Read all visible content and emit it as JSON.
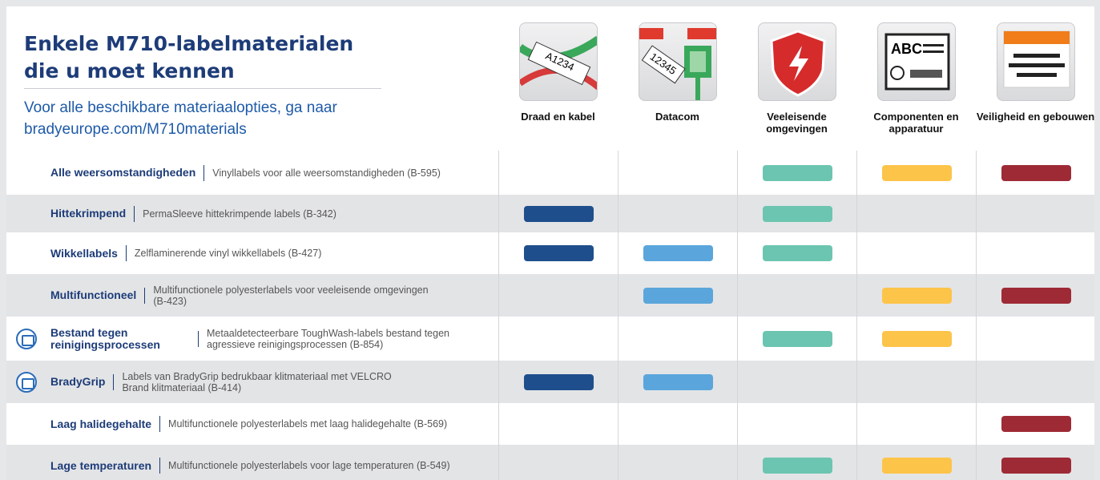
{
  "header": {
    "title": "Enkele M710-labelmaterialen die u moet kennen",
    "subtitle": "Voor alle beschikbare materiaalopties, ga naar bradyeurope.com/M710materials"
  },
  "table": {
    "columns": [
      {
        "label": "Draad en kabel",
        "color": "#1f4e8c"
      },
      {
        "label": "Datacom",
        "color": "#5aa6dc"
      },
      {
        "label": "Veeleisende omgevingen",
        "color": "#6cc5b0"
      },
      {
        "label": "Componenten en apparatuur",
        "color": "#fdc44a"
      },
      {
        "label": "Veiligheid en gebouwen",
        "color": "#9e2a36"
      }
    ],
    "rows": [
      {
        "name": "Alle weersomstandigheden",
        "description": "Vinyllabels voor alle weersomstandigheden (B-595)",
        "icon": false,
        "marks": [
          false,
          false,
          true,
          true,
          true
        ]
      },
      {
        "name": "Hittekrimpend",
        "description": "PermaSleeve hittekrimpende labels (B-342)",
        "icon": false,
        "marks": [
          true,
          false,
          true,
          false,
          false
        ]
      },
      {
        "name": "Wikkellabels",
        "description": "Zelflaminerende vinyl wikkellabels (B-427)",
        "icon": false,
        "marks": [
          true,
          true,
          true,
          false,
          false
        ]
      },
      {
        "name": "Multifunctioneel",
        "description": "Multifunctionele polyesterlabels voor veeleisende omgevingen (B-423)",
        "icon": false,
        "marks": [
          false,
          true,
          false,
          true,
          true
        ]
      },
      {
        "name": "Bestand tegen reinigingsprocessen",
        "description": "Metaaldetecteerbare ToughWash-labels bestand tegen agressieve reinigingsprocessen (B-854)",
        "icon": true,
        "marks": [
          false,
          false,
          true,
          true,
          false
        ]
      },
      {
        "name": "BradyGrip",
        "description": "Labels van BradyGrip bedrukbaar klitmateriaal met VELCRO Brand klitmateriaal (B-414)",
        "icon": true,
        "marks": [
          true,
          true,
          false,
          false,
          false
        ]
      },
      {
        "name": "Laag halidegehalte",
        "description": "Multifunctionele polyesterlabels met laag halidegehalte (B-569)",
        "icon": false,
        "marks": [
          false,
          false,
          false,
          false,
          true
        ]
      },
      {
        "name": "Lage temperaturen",
        "description": "Multifunctionele polyesterlabels voor lage temperaturen (B-549)",
        "icon": false,
        "marks": [
          false,
          false,
          true,
          true,
          true
        ]
      }
    ]
  }
}
